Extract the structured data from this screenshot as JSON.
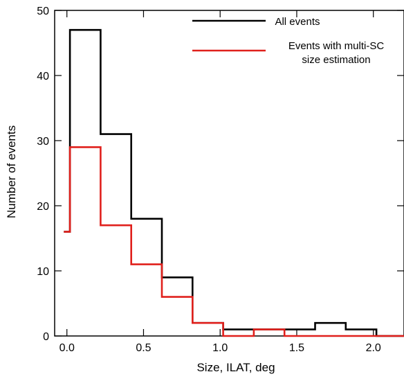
{
  "chart_data": {
    "type": "step-histogram",
    "xlabel": "Size, ILAT, deg",
    "ylabel": "Number of events",
    "xlim": [
      -0.08,
      2.2
    ],
    "ylim": [
      0,
      50
    ],
    "x_ticks": [
      0.0,
      0.5,
      1.0,
      1.5,
      2.0
    ],
    "x_tick_labels": [
      "0.0",
      "0.5",
      "1.0",
      "1.5",
      "2.0"
    ],
    "y_ticks": [
      0,
      10,
      20,
      30,
      40,
      50
    ],
    "y_tick_labels": [
      "0",
      "10",
      "20",
      "30",
      "40",
      "50"
    ],
    "bin_edges": [
      -0.02,
      0.02,
      0.22,
      0.42,
      0.62,
      0.82,
      1.02,
      1.22,
      1.42,
      1.62,
      1.82,
      2.02,
      2.2
    ],
    "series": [
      {
        "name": "All events",
        "color": "#000000",
        "values": [
          16,
          47,
          31,
          18,
          9,
          2,
          1,
          1,
          1,
          2,
          1,
          0
        ]
      },
      {
        "name": "Events with multi-SC size estimation",
        "legend_lines": [
          "Events with multi-SC",
          "size estimation"
        ],
        "color": "#e0201c",
        "values": [
          16,
          29,
          17,
          11,
          6,
          2,
          0,
          1,
          0,
          0,
          0,
          0
        ]
      }
    ],
    "grid": false,
    "legend_position": "top-right"
  }
}
